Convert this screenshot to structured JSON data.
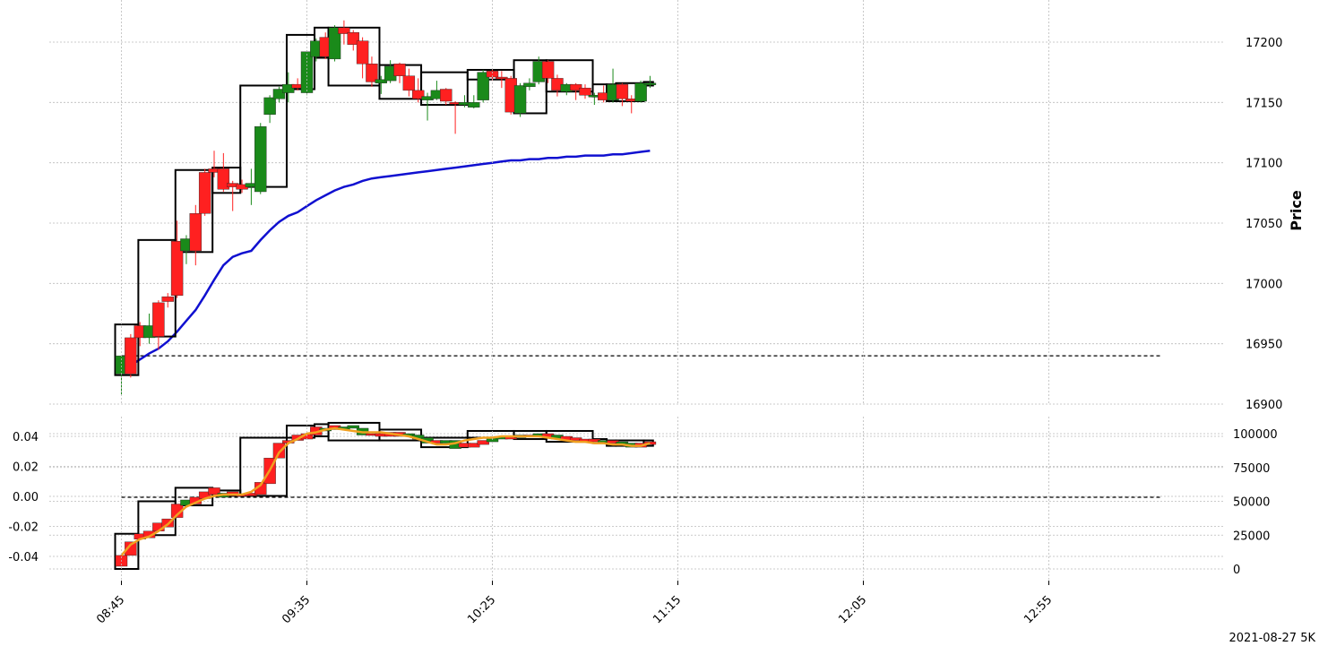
{
  "chart_data": {
    "type": "candlestick",
    "footer_label": "2021-08-27 5K",
    "price_axis_label": "Price",
    "x_ticks": [
      "08:45",
      "09:35",
      "10:25",
      "11:15",
      "12:05",
      "12:55"
    ],
    "colors": {
      "up": "#1a8a1a",
      "down": "#ff2020",
      "ma": "#1010d0",
      "lower_line": "#f0a020",
      "box": "#000000",
      "grid": "#bbbbbb"
    },
    "price_panel": {
      "ylim": [
        16900,
        17220
      ],
      "y_ticks": [
        16900,
        16950,
        17000,
        17050,
        17100,
        17150,
        17200
      ],
      "reference_level": 16940,
      "candles": [
        [
          16925,
          16940,
          16908,
          16940
        ],
        [
          16955,
          16925,
          16922,
          16958
        ],
        [
          16965,
          16955,
          16948,
          16968
        ],
        [
          16955,
          16965,
          16950,
          16975
        ],
        [
          16984,
          16956,
          16945,
          16986
        ],
        [
          16989,
          16985,
          16980,
          16992
        ],
        [
          17035,
          16990,
          16988,
          17052
        ],
        [
          17027,
          17037,
          17016,
          17040
        ],
        [
          17058,
          17027,
          17015,
          17065
        ],
        [
          17092,
          17058,
          17056,
          17095
        ],
        [
          17095,
          17092,
          17088,
          17110
        ],
        [
          17095,
          17078,
          17076,
          17108
        ],
        [
          17083,
          17080,
          17060,
          17085
        ],
        [
          17082,
          17078,
          17075,
          17086
        ],
        [
          17080,
          17083,
          17065,
          17095
        ],
        [
          17076,
          17130,
          17074,
          17133
        ],
        [
          17140,
          17154,
          17133,
          17156
        ],
        [
          17153,
          17161,
          17150,
          17163
        ],
        [
          17158,
          17165,
          17150,
          17175
        ],
        [
          17165,
          17162,
          17160,
          17170
        ],
        [
          17158,
          17192,
          17156,
          17193
        ],
        [
          17188,
          17201,
          17184,
          17203
        ],
        [
          17204,
          17188,
          17186,
          17208
        ],
        [
          17186,
          17212,
          17184,
          17214
        ],
        [
          17212,
          17207,
          17198,
          17218
        ],
        [
          17208,
          17198,
          17193,
          17210
        ],
        [
          17201,
          17182,
          17170,
          17204
        ],
        [
          17182,
          17167,
          17163,
          17188
        ],
        [
          17166,
          17169,
          17157,
          17172
        ],
        [
          17168,
          17180,
          17166,
          17185
        ],
        [
          17182,
          17172,
          17166,
          17183
        ],
        [
          17172,
          17160,
          17155,
          17178
        ],
        [
          17160,
          17153,
          17150,
          17170
        ],
        [
          17152,
          17155,
          17135,
          17158
        ],
        [
          17153,
          17160,
          17152,
          17168
        ],
        [
          17161,
          17151,
          17148,
          17162
        ],
        [
          17150,
          17149,
          17124,
          17151
        ],
        [
          17148,
          17150,
          17146,
          17156
        ],
        [
          17146,
          17150,
          17145,
          17156
        ],
        [
          17152,
          17175,
          17150,
          17177
        ],
        [
          17176,
          17171,
          17168,
          17177
        ],
        [
          17171,
          17170,
          17162,
          17176
        ],
        [
          17170,
          17142,
          17140,
          17172
        ],
        [
          17141,
          17164,
          17138,
          17166
        ],
        [
          17163,
          17166,
          17160,
          17170
        ],
        [
          17167,
          17184,
          17165,
          17188
        ],
        [
          17184,
          17170,
          17166,
          17185
        ],
        [
          17170,
          17160,
          17155,
          17173
        ],
        [
          17159,
          17165,
          17156,
          17166
        ],
        [
          17165,
          17160,
          17152,
          17166
        ],
        [
          17162,
          17156,
          17153,
          17165
        ],
        [
          17155,
          17156,
          17148,
          17158
        ],
        [
          17158,
          17152,
          17150,
          17164
        ],
        [
          17152,
          17165,
          17150,
          17178
        ],
        [
          17165,
          17153,
          17147,
          17166
        ],
        [
          17153,
          17151,
          17141,
          17156
        ],
        [
          17151,
          17166,
          17150,
          17168
        ],
        [
          17165,
          17166,
          17162,
          17172
        ]
      ],
      "ma_line": [
        16927,
        16932,
        16937,
        16942,
        16946,
        16952,
        16960,
        16969,
        16978,
        16990,
        17003,
        17015,
        17022,
        17025,
        17027,
        17036,
        17044,
        17051,
        17056,
        17059,
        17064,
        17069,
        17073,
        17077,
        17080,
        17082,
        17085,
        17087,
        17088,
        17089,
        17090,
        17091,
        17092,
        17093,
        17094,
        17095,
        17096,
        17097,
        17098,
        17099,
        17100,
        17101,
        17102,
        17102,
        17103,
        17103,
        17104,
        17104,
        17105,
        17105,
        17106,
        17106,
        17106,
        17107,
        17107,
        17108,
        17109,
        17110
      ],
      "boxes": [
        [
          0,
          5,
          16924,
          16966
        ],
        [
          5,
          13,
          16956,
          17036
        ],
        [
          13,
          21,
          17026,
          17094
        ],
        [
          21,
          27,
          17075,
          17096
        ],
        [
          27,
          37,
          17080,
          17164
        ],
        [
          37,
          43,
          17161,
          17206
        ],
        [
          43,
          46,
          17187,
          17212
        ],
        [
          46,
          57,
          17164,
          17212
        ],
        [
          57,
          66,
          17153,
          17181
        ],
        [
          66,
          76,
          17148,
          17175
        ],
        [
          76,
          86,
          17169,
          17177
        ],
        [
          86,
          93,
          17141,
          17185
        ],
        [
          93,
          103,
          17159,
          17185
        ],
        [
          103,
          106,
          17155,
          17165
        ],
        [
          106,
          108,
          17151,
          17165
        ],
        [
          108,
          114,
          17151,
          17166
        ],
        [
          114,
          116,
          17164,
          17167
        ]
      ]
    },
    "lower_panel": {
      "left_axis": {
        "ylim": [
          -0.05,
          0.05
        ],
        "ticks": [
          "-0.04",
          "-0.02",
          "0.00",
          "0.02",
          "0.04"
        ]
      },
      "right_axis": {
        "ylim": [
          -2500,
          102000
        ],
        "ticks": [
          "0",
          "25000",
          "50000",
          "75000",
          "100000"
        ]
      },
      "reference_level_right": 53000,
      "candles_right_axis": [
        [
          10000,
          2000
        ],
        [
          20000,
          10000
        ],
        [
          26000,
          22000
        ],
        [
          28000,
          23000
        ],
        [
          34000,
          28000
        ],
        [
          37000,
          31000
        ],
        [
          48000,
          38000
        ],
        [
          51000,
          47000
        ],
        [
          53000,
          48000
        ],
        [
          57000,
          52000
        ],
        [
          60000,
          55000
        ],
        [
          56000,
          53000
        ],
        [
          57000,
          54000
        ],
        [
          55000,
          54000
        ],
        [
          56000,
          54000
        ],
        [
          64000,
          55000
        ],
        [
          82000,
          63000
        ],
        [
          93000,
          82000
        ],
        [
          95000,
          93000
        ],
        [
          99000,
          95000
        ],
        [
          100000,
          96000
        ],
        [
          105000,
          99000
        ],
        [
          104000,
          102000
        ],
        [
          106000,
          103000
        ],
        [
          105000,
          103000
        ],
        [
          106000,
          104000
        ],
        [
          104000,
          99000
        ],
        [
          100000,
          99000
        ],
        [
          100000,
          98000
        ],
        [
          101000,
          98000
        ],
        [
          101000,
          98000
        ],
        [
          100000,
          98000
        ],
        [
          99000,
          96000
        ],
        [
          97000,
          93000
        ],
        [
          95000,
          93000
        ],
        [
          95000,
          93000
        ],
        [
          95000,
          89000
        ],
        [
          93000,
          90000
        ],
        [
          93000,
          90000
        ],
        [
          95000,
          92000
        ],
        [
          97000,
          94000
        ],
        [
          98000,
          96000
        ],
        [
          98000,
          96000
        ],
        [
          99000,
          97000
        ],
        [
          99000,
          98000
        ],
        [
          100000,
          98000
        ],
        [
          100000,
          97000
        ],
        [
          99000,
          96000
        ],
        [
          98000,
          95000
        ],
        [
          97000,
          95000
        ],
        [
          96000,
          94000
        ],
        [
          96000,
          94000
        ],
        [
          95000,
          94000
        ],
        [
          95000,
          93000
        ],
        [
          94000,
          92000
        ],
        [
          93000,
          90000
        ],
        [
          93000,
          90000
        ],
        [
          94000,
          92000
        ]
      ],
      "candle_up": [
        false,
        false,
        false,
        false,
        false,
        false,
        false,
        true,
        false,
        false,
        false,
        true,
        false,
        false,
        false,
        false,
        false,
        false,
        false,
        false,
        false,
        false,
        true,
        false,
        true,
        true,
        true,
        false,
        false,
        false,
        false,
        true,
        true,
        true,
        false,
        true,
        true,
        false,
        false,
        false,
        true,
        true,
        false,
        true,
        false,
        true,
        false,
        true,
        false,
        false,
        false,
        false,
        true,
        false,
        true,
        true,
        false,
        false
      ],
      "smooth_line_right": [
        10000,
        18000,
        22000,
        24000,
        28000,
        33000,
        40000,
        46000,
        49000,
        52000,
        54000,
        55000,
        55000,
        55000,
        57000,
        62000,
        73000,
        86000,
        93000,
        96000,
        100000,
        101000,
        103000,
        104000,
        103000,
        102000,
        101000,
        101000,
        101000,
        100000,
        99000,
        98000,
        96000,
        94000,
        92000,
        92000,
        93000,
        95000,
        96000,
        97000,
        97000,
        98000,
        98000,
        98000,
        98000,
        98000,
        97000,
        96000,
        95000,
        94000,
        94000,
        93000,
        93000,
        92000,
        92000,
        91000,
        91000,
        93000
      ],
      "boxes_right_axis": [
        [
          0,
          5,
          0,
          26000
        ],
        [
          5,
          13,
          25000,
          50000
        ],
        [
          13,
          21,
          47000,
          60000
        ],
        [
          21,
          27,
          54000,
          58000
        ],
        [
          27,
          37,
          54000,
          97000
        ],
        [
          37,
          43,
          97000,
          106000
        ],
        [
          43,
          46,
          98000,
          107000
        ],
        [
          46,
          57,
          95000,
          108000
        ],
        [
          57,
          66,
          95000,
          103000
        ],
        [
          66,
          76,
          90000,
          97000
        ],
        [
          76,
          86,
          97000,
          102000
        ],
        [
          86,
          93,
          96000,
          102000
        ],
        [
          93,
          103,
          94000,
          102000
        ],
        [
          103,
          106,
          93000,
          96000
        ],
        [
          106,
          108,
          91000,
          95000
        ],
        [
          108,
          114,
          91000,
          95000
        ],
        [
          114,
          116,
          91000,
          95000
        ]
      ]
    }
  }
}
